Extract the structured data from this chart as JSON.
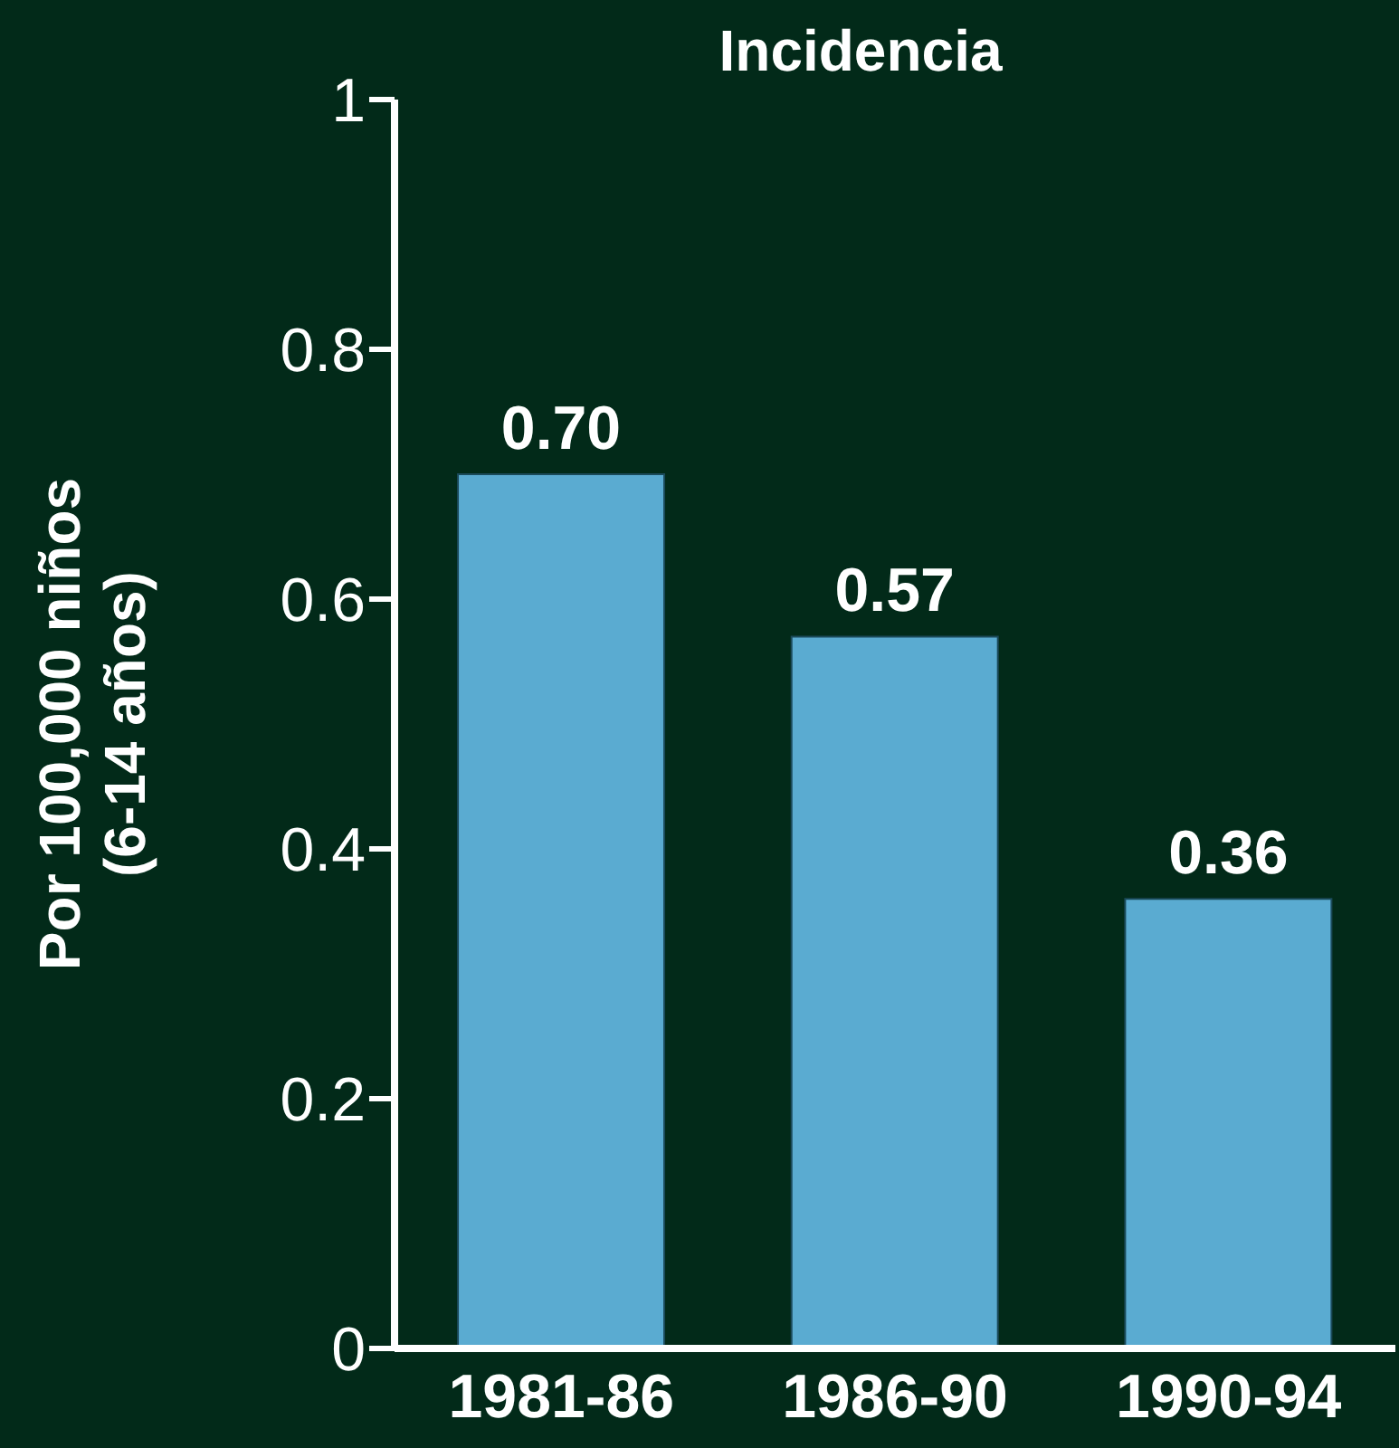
{
  "chart_data": {
    "type": "bar",
    "title": "Incidencia",
    "ylabel": "Por 100,000 niños\n(6-14 años)",
    "categories": [
      "1981-86",
      "1986-90",
      "1990-94"
    ],
    "values": [
      0.7,
      0.57,
      0.36
    ],
    "color": "#5aabd1",
    "ylim": [
      0,
      1
    ],
    "yticks": [
      0,
      0.2,
      0.4,
      0.6,
      0.8,
      1
    ],
    "value_labels": [
      "0.70",
      "0.57",
      "0.36"
    ],
    "grid": false,
    "legend": false
  }
}
